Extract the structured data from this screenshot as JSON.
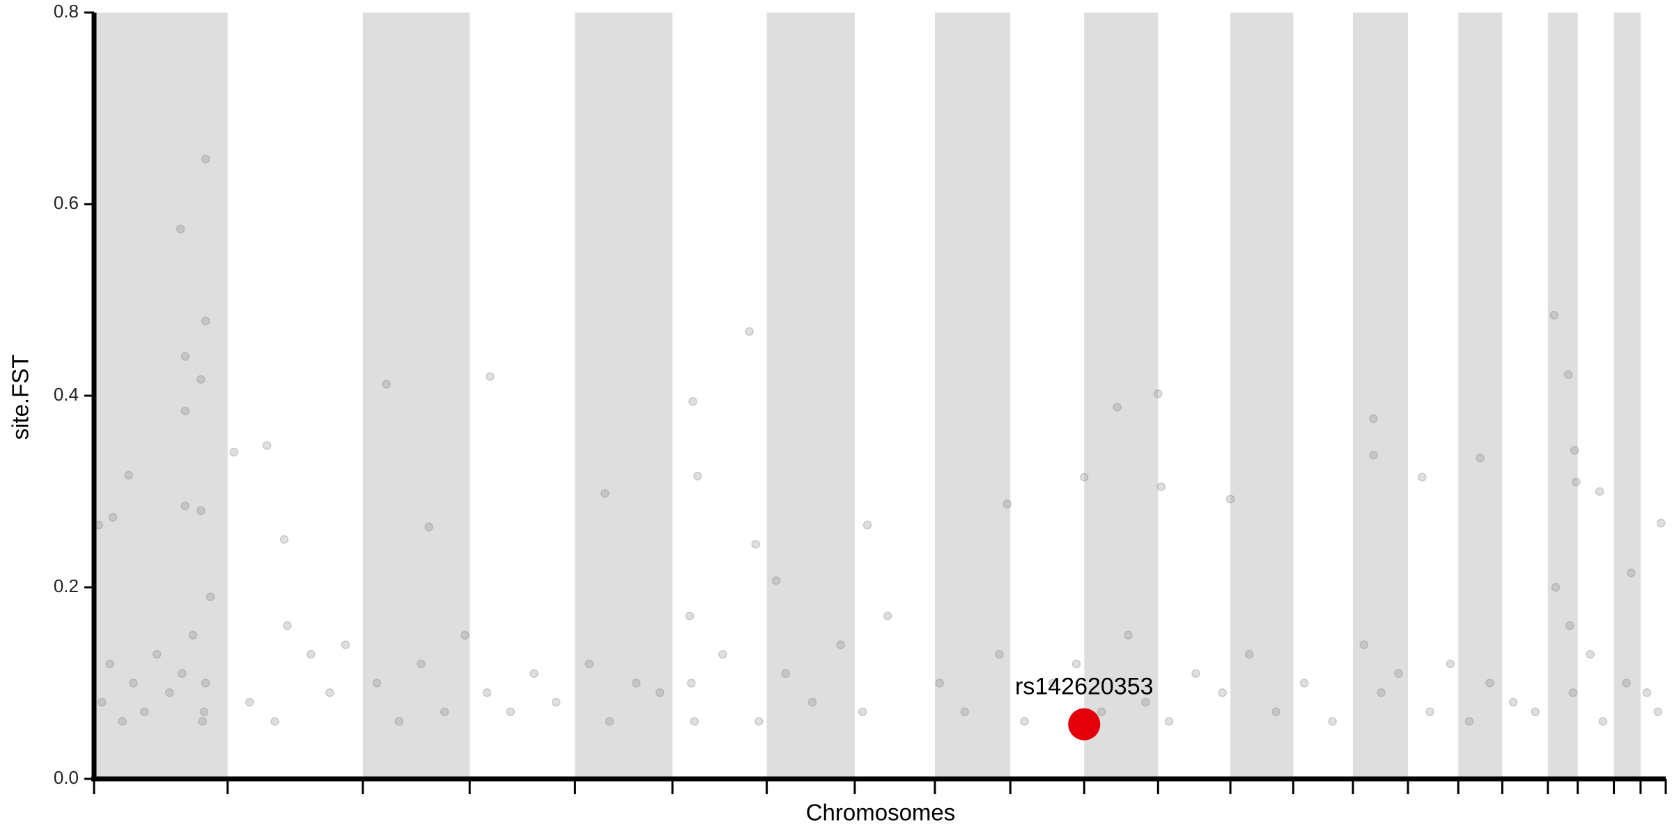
{
  "chart_data": {
    "type": "scatter",
    "xlabel": "Chromosomes",
    "ylabel": "site.FST",
    "xlim": [
      0,
      100
    ],
    "ylim": [
      0,
      0.8
    ],
    "xticks": [
      0,
      8.5,
      17.1,
      23.9,
      30.6,
      36.8,
      42.8,
      48.4,
      53.5,
      58.3,
      63.0,
      67.7,
      72.3,
      76.3,
      80.1,
      83.6,
      86.8,
      89.6,
      92.5,
      94.4,
      96.7,
      98.4,
      100
    ],
    "yticks": [
      {
        "value": 0,
        "label": "0.0"
      },
      0.2,
      0.4,
      0.6,
      0.8
    ],
    "band_color": "#dedede",
    "point_color": "#808080",
    "series": [
      {
        "name": "site.FST",
        "color": "#808080",
        "x": [
          7.1,
          5.5,
          7.1,
          5.8,
          6.8,
          5.8,
          2.2,
          5.8,
          6.8,
          0.3,
          1.2,
          8.9,
          11.0,
          12.1,
          18.6,
          25.2,
          21.3,
          32.5,
          38.1,
          38.4,
          41.7,
          42.1,
          43.4,
          49.2,
          58.1,
          63.0,
          65.1,
          67.7,
          67.9,
          72.3,
          81.4,
          81.4,
          84.5,
          88.2,
          92.9,
          93.8,
          94.2,
          94.3,
          95.8,
          99.7,
          97.8,
          0.5,
          1.0,
          1.8,
          2.5,
          3.2,
          4.0,
          4.8,
          5.6,
          6.3,
          7.0,
          7.4,
          7.1,
          6.9,
          9.9,
          11.5,
          12.3,
          13.8,
          15.0,
          16.0,
          18.0,
          19.4,
          20.8,
          22.3,
          23.6,
          25.0,
          26.5,
          28.0,
          29.4,
          31.5,
          32.8,
          34.5,
          36.0,
          37.9,
          38.0,
          38.2,
          40.0,
          42.3,
          44.0,
          45.7,
          47.5,
          48.9,
          50.5,
          53.8,
          55.4,
          57.6,
          59.2,
          61.0,
          62.5,
          64.1,
          65.8,
          66.9,
          68.4,
          70.1,
          71.8,
          73.5,
          75.2,
          77.0,
          78.8,
          80.8,
          81.9,
          83.0,
          85.0,
          86.3,
          87.5,
          88.8,
          90.3,
          91.7,
          93.0,
          93.9,
          94.1,
          95.2,
          96.0,
          97.5,
          98.8,
          99.5
        ],
        "values": [
          0.647,
          0.574,
          0.478,
          0.441,
          0.417,
          0.384,
          0.317,
          0.285,
          0.28,
          0.265,
          0.273,
          0.341,
          0.348,
          0.25,
          0.412,
          0.42,
          0.263,
          0.298,
          0.394,
          0.316,
          0.467,
          0.245,
          0.207,
          0.265,
          0.287,
          0.315,
          0.388,
          0.402,
          0.305,
          0.292,
          0.376,
          0.338,
          0.315,
          0.335,
          0.484,
          0.422,
          0.343,
          0.31,
          0.3,
          0.267,
          0.215,
          0.08,
          0.12,
          0.06,
          0.1,
          0.07,
          0.13,
          0.09,
          0.11,
          0.15,
          0.07,
          0.19,
          0.1,
          0.06,
          0.08,
          0.06,
          0.16,
          0.13,
          0.09,
          0.14,
          0.1,
          0.06,
          0.12,
          0.07,
          0.15,
          0.09,
          0.07,
          0.11,
          0.08,
          0.12,
          0.06,
          0.1,
          0.09,
          0.17,
          0.1,
          0.06,
          0.13,
          0.06,
          0.11,
          0.08,
          0.14,
          0.07,
          0.17,
          0.1,
          0.07,
          0.13,
          0.06,
          0.1,
          0.12,
          0.07,
          0.15,
          0.08,
          0.06,
          0.11,
          0.09,
          0.13,
          0.07,
          0.1,
          0.06,
          0.14,
          0.09,
          0.11,
          0.07,
          0.12,
          0.06,
          0.1,
          0.08,
          0.07,
          0.2,
          0.16,
          0.09,
          0.13,
          0.06,
          0.1,
          0.09,
          0.07
        ]
      }
    ],
    "highlight": {
      "label": "rs142620353",
      "x": 63.0,
      "y": 0.057,
      "color": "#e3000b"
    }
  }
}
